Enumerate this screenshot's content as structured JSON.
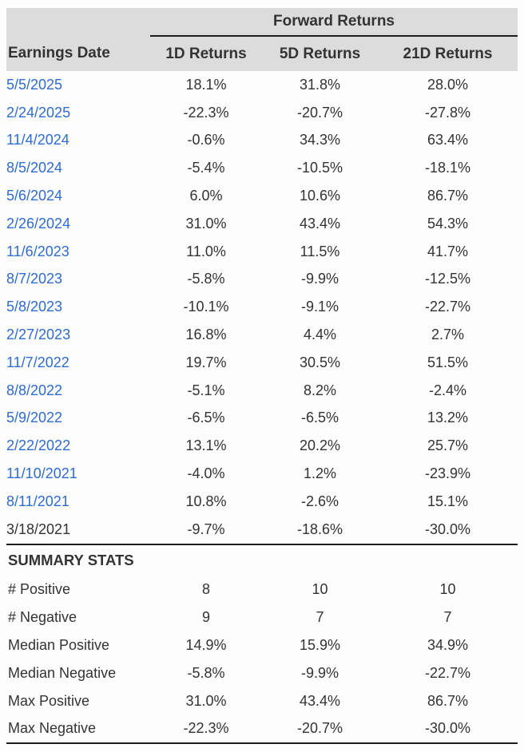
{
  "table": {
    "group_header": "Forward Returns",
    "columns": [
      "Earnings Date",
      "1D Returns",
      "5D Returns",
      "21D Returns"
    ],
    "rows": [
      {
        "date": "5/5/2025",
        "r1d": "18.1%",
        "r5d": "31.8%",
        "r21d": "28.0%",
        "link": true
      },
      {
        "date": "2/24/2025",
        "r1d": "-22.3%",
        "r5d": "-20.7%",
        "r21d": "-27.8%",
        "link": true
      },
      {
        "date": "11/4/2024",
        "r1d": "-0.6%",
        "r5d": "34.3%",
        "r21d": "63.4%",
        "link": true
      },
      {
        "date": "8/5/2024",
        "r1d": "-5.4%",
        "r5d": "-10.5%",
        "r21d": "-18.1%",
        "link": true
      },
      {
        "date": "5/6/2024",
        "r1d": "6.0%",
        "r5d": "10.6%",
        "r21d": "86.7%",
        "link": true
      },
      {
        "date": "2/26/2024",
        "r1d": "31.0%",
        "r5d": "43.4%",
        "r21d": "54.3%",
        "link": true
      },
      {
        "date": "11/6/2023",
        "r1d": "11.0%",
        "r5d": "11.5%",
        "r21d": "41.7%",
        "link": true
      },
      {
        "date": "8/7/2023",
        "r1d": "-5.8%",
        "r5d": "-9.9%",
        "r21d": "-12.5%",
        "link": true
      },
      {
        "date": "5/8/2023",
        "r1d": "-10.1%",
        "r5d": "-9.1%",
        "r21d": "-22.7%",
        "link": true
      },
      {
        "date": "2/27/2023",
        "r1d": "16.8%",
        "r5d": "4.4%",
        "r21d": "2.7%",
        "link": true
      },
      {
        "date": "11/7/2022",
        "r1d": "19.7%",
        "r5d": "30.5%",
        "r21d": "51.5%",
        "link": true
      },
      {
        "date": "8/8/2022",
        "r1d": "-5.1%",
        "r5d": "8.2%",
        "r21d": "-2.4%",
        "link": true
      },
      {
        "date": "5/9/2022",
        "r1d": "-6.5%",
        "r5d": "-6.5%",
        "r21d": "13.2%",
        "link": true
      },
      {
        "date": "2/22/2022",
        "r1d": "13.1%",
        "r5d": "20.2%",
        "r21d": "25.7%",
        "link": true
      },
      {
        "date": "11/10/2021",
        "r1d": "-4.0%",
        "r5d": "1.2%",
        "r21d": "-23.9%",
        "link": true
      },
      {
        "date": "8/11/2021",
        "r1d": "10.8%",
        "r5d": "-2.6%",
        "r21d": "15.1%",
        "link": true
      },
      {
        "date": "3/18/2021",
        "r1d": "-9.7%",
        "r5d": "-18.6%",
        "r21d": "-30.0%",
        "link": false
      }
    ],
    "summary_title": "SUMMARY STATS",
    "summary_rows": [
      {
        "label": "# Positive",
        "r1d": "8",
        "r5d": "10",
        "r21d": "10"
      },
      {
        "label": "# Negative",
        "r1d": "9",
        "r5d": "7",
        "r21d": "7"
      },
      {
        "label": "Median Positive",
        "r1d": "14.9%",
        "r5d": "15.9%",
        "r21d": "34.9%"
      },
      {
        "label": "Median Negative",
        "r1d": "-5.8%",
        "r5d": "-9.9%",
        "r21d": "-22.7%"
      },
      {
        "label": "Max Positive",
        "r1d": "31.0%",
        "r5d": "43.4%",
        "r21d": "86.7%"
      },
      {
        "label": "Max Negative",
        "r1d": "-22.3%",
        "r5d": "-20.7%",
        "r21d": "-30.0%"
      }
    ]
  },
  "colors": {
    "header_band": "#dcdcdc",
    "link_blue": "#2e6bd2",
    "text": "#333333",
    "rule": "#1c1c1c"
  }
}
